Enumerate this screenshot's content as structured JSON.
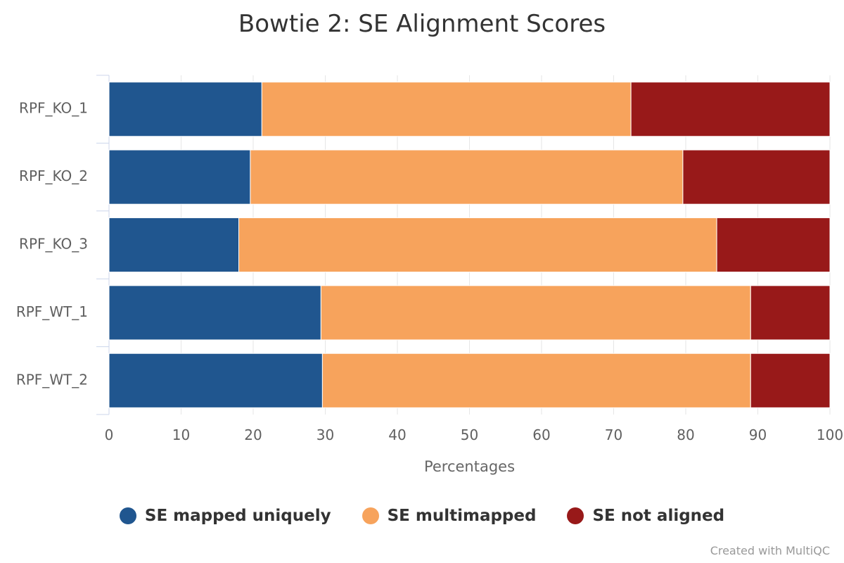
{
  "chart_data": {
    "type": "bar",
    "orientation": "horizontal",
    "stacked": true,
    "title": "Bowtie 2: SE Alignment Scores",
    "xlabel": "Percentages",
    "ylabel": "",
    "xlim": [
      0,
      100
    ],
    "xticks": [
      0,
      10,
      20,
      30,
      40,
      50,
      60,
      70,
      80,
      90,
      100
    ],
    "categories": [
      "RPF_KO_1",
      "RPF_KO_2",
      "RPF_KO_3",
      "RPF_WT_1",
      "RPF_WT_2"
    ],
    "series": [
      {
        "name": "SE mapped uniquely",
        "color": "#20568f",
        "values": [
          21.2,
          19.6,
          18.0,
          29.4,
          29.6
        ]
      },
      {
        "name": "SE multimapped",
        "color": "#f7a35c",
        "values": [
          51.2,
          60.0,
          66.3,
          59.6,
          59.4
        ]
      },
      {
        "name": "SE not aligned",
        "color": "#981919",
        "values": [
          27.6,
          20.4,
          15.7,
          11.0,
          11.0
        ]
      }
    ],
    "legend_position": "bottom",
    "grid": true
  },
  "credits": "Created with MultiQC"
}
